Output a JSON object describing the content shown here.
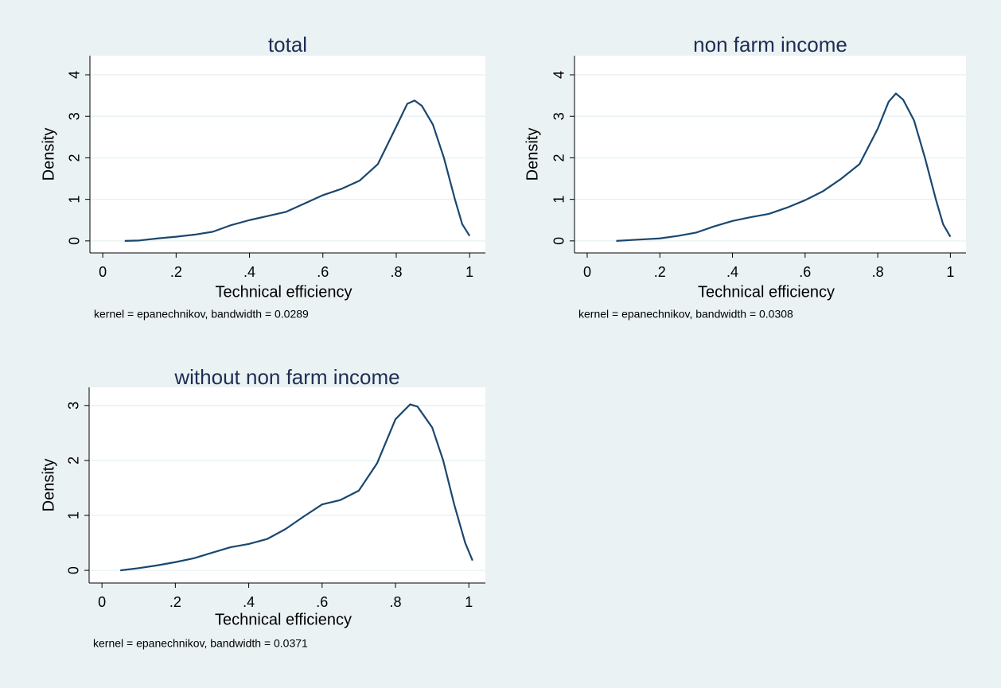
{
  "chart_data": [
    {
      "type": "line",
      "title": "total",
      "x_label": "Technical efficiency",
      "y_label": "Density",
      "note": "kernel = epanechnikov, bandwidth = 0.0289",
      "color": "#1a476f",
      "grid": true,
      "x": [
        0.06,
        0.1,
        0.15,
        0.2,
        0.25,
        0.3,
        0.35,
        0.4,
        0.45,
        0.5,
        0.55,
        0.6,
        0.65,
        0.7,
        0.75,
        0.8,
        0.83,
        0.85,
        0.87,
        0.9,
        0.93,
        0.96,
        0.98,
        1.0
      ],
      "values": [
        0,
        0.01,
        0.06,
        0.1,
        0.15,
        0.22,
        0.38,
        0.5,
        0.6,
        0.7,
        0.9,
        1.1,
        1.25,
        1.45,
        1.85,
        2.75,
        3.3,
        3.38,
        3.25,
        2.8,
        2.0,
        1.0,
        0.4,
        0.12
      ],
      "xlim": [
        -0.035,
        1.043
      ],
      "ylim": [
        -0.29,
        4.46
      ],
      "xticks": [
        0,
        {
          "value": 0.2,
          "label": ".2"
        },
        {
          "value": 0.4,
          "label": ".4"
        },
        {
          "value": 0.6,
          "label": ".6"
        },
        {
          "value": 0.8,
          "label": ".8"
        },
        1
      ],
      "yticks": [
        0,
        1,
        2,
        3,
        4
      ]
    },
    {
      "type": "line",
      "title": "non farm income",
      "x_label": "Technical efficiency",
      "y_label": "Density",
      "note": "kernel = epanechnikov, bandwidth = 0.0308",
      "color": "#1a476f",
      "grid": true,
      "x": [
        0.08,
        0.12,
        0.2,
        0.25,
        0.3,
        0.35,
        0.4,
        0.45,
        0.5,
        0.55,
        0.6,
        0.65,
        0.7,
        0.75,
        0.8,
        0.83,
        0.85,
        0.87,
        0.9,
        0.93,
        0.96,
        0.98,
        1.0
      ],
      "values": [
        0,
        0.02,
        0.06,
        0.12,
        0.2,
        0.35,
        0.48,
        0.57,
        0.65,
        0.8,
        0.98,
        1.2,
        1.5,
        1.85,
        2.7,
        3.35,
        3.55,
        3.4,
        2.9,
        2.0,
        1.0,
        0.4,
        0.1
      ],
      "xlim": [
        -0.035,
        1.043
      ],
      "ylim": [
        -0.29,
        4.46
      ],
      "xticks": [
        0,
        {
          "value": 0.2,
          "label": ".2"
        },
        {
          "value": 0.4,
          "label": ".4"
        },
        {
          "value": 0.6,
          "label": ".6"
        },
        {
          "value": 0.8,
          "label": ".8"
        },
        1
      ],
      "yticks": [
        0,
        1,
        2,
        3,
        4
      ]
    },
    {
      "type": "line",
      "title": "without non farm income",
      "x_label": "Technical efficiency",
      "y_label": "Density",
      "note": "kernel = epanechnikov, bandwidth = 0.0371",
      "color": "#1a476f",
      "grid": true,
      "x": [
        0.05,
        0.1,
        0.15,
        0.2,
        0.25,
        0.3,
        0.35,
        0.4,
        0.45,
        0.5,
        0.55,
        0.6,
        0.65,
        0.7,
        0.75,
        0.8,
        0.84,
        0.86,
        0.9,
        0.93,
        0.96,
        0.99,
        1.01
      ],
      "values": [
        0,
        0.04,
        0.09,
        0.15,
        0.22,
        0.32,
        0.42,
        0.48,
        0.57,
        0.75,
        0.98,
        1.2,
        1.28,
        1.45,
        1.95,
        2.75,
        3.02,
        2.98,
        2.6,
        2.0,
        1.2,
        0.5,
        0.18
      ],
      "xlim": [
        -0.035,
        1.045
      ],
      "ylim": [
        -0.23,
        3.33
      ],
      "xticks": [
        0,
        {
          "value": 0.2,
          "label": ".2"
        },
        {
          "value": 0.4,
          "label": ".4"
        },
        {
          "value": 0.6,
          "label": ".6"
        },
        {
          "value": 0.8,
          "label": ".8"
        },
        1
      ],
      "yticks": [
        0,
        1,
        2,
        3
      ]
    }
  ]
}
